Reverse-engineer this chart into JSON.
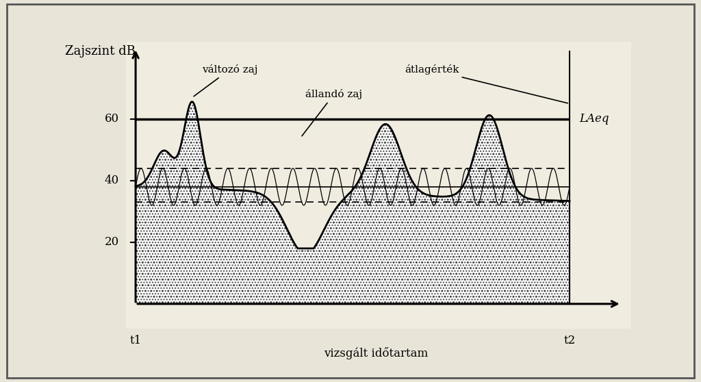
{
  "bg_outer": "#e8e4d8",
  "bg_inner": "#f0ece0",
  "border_color": "#888888",
  "ylabel": "Zajszint dB",
  "xlabel": "vizsgált időtartam",
  "t1_label": "t1",
  "t2_label": "t2",
  "laeq_label": "LAeq",
  "laeq_value": 60,
  "yticks": [
    20,
    40,
    60
  ],
  "dashed_upper": 44,
  "dashed_lower": 33,
  "solid_middle": 38,
  "annotation_valtozo": "változó zaj",
  "annotation_allando": "állandó zaj",
  "annotation_atlag": "átlagérték",
  "line_color": "#111111",
  "title_fontsize": 13,
  "label_fontsize": 12,
  "annot_fontsize": 11
}
